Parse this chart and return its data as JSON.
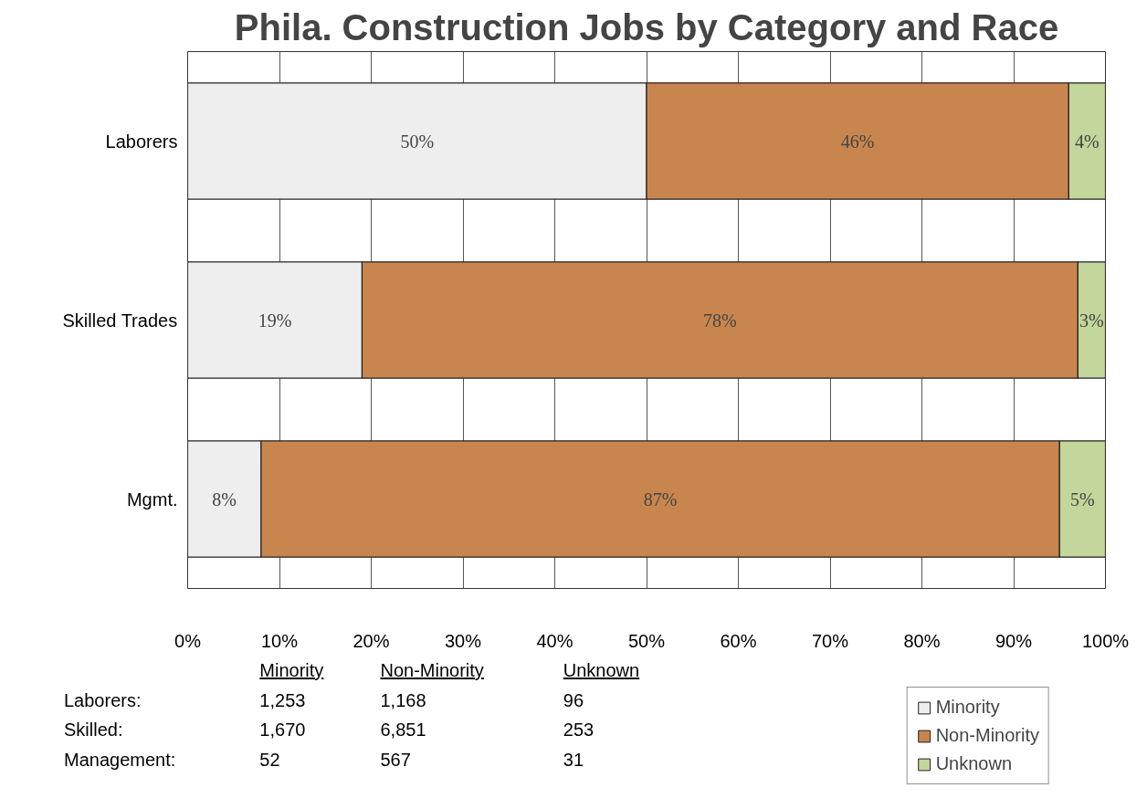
{
  "chart_data": {
    "type": "bar",
    "orientation": "horizontal",
    "stacked": true,
    "title": "Phila. Construction Jobs by Category and Race",
    "categories": [
      "Laborers",
      "Skilled Trades",
      "Mgmt."
    ],
    "series": [
      {
        "name": "Minority",
        "color": "#eeeeee",
        "values": [
          50,
          19,
          8
        ],
        "value_labels": [
          "50%",
          "19%",
          "8%"
        ]
      },
      {
        "name": "Non-Minority",
        "color": "#c8864e",
        "values": [
          46,
          78,
          87
        ],
        "value_labels": [
          "46%",
          "78%",
          "87%"
        ]
      },
      {
        "name": "Unknown",
        "color": "#c3d69b",
        "values": [
          4,
          3,
          5
        ],
        "value_labels": [
          "4%",
          "3%",
          "5%"
        ]
      }
    ],
    "xlim": [
      0,
      100
    ],
    "xticks": [
      {
        "value": 0,
        "label": "0%"
      },
      {
        "value": 10,
        "label": "10%"
      },
      {
        "value": 20,
        "label": "20%"
      },
      {
        "value": 30,
        "label": "30%"
      },
      {
        "value": 40,
        "label": "40%"
      },
      {
        "value": 50,
        "label": "50%"
      },
      {
        "value": 60,
        "label": "60%"
      },
      {
        "value": 70,
        "label": "70%"
      },
      {
        "value": 80,
        "label": "80%"
      },
      {
        "value": 90,
        "label": "90%"
      },
      {
        "value": 100,
        "label": "100%"
      }
    ],
    "grid": "x",
    "legend": "bottom right",
    "annotations": [
      "Minority",
      "Non-Minority",
      "Unknown",
      "Laborers:",
      "1,253",
      "1,168",
      "96",
      "Skilled:",
      "1,670",
      "6,851",
      "253",
      "Management:",
      "52",
      "567",
      "31"
    ]
  }
}
